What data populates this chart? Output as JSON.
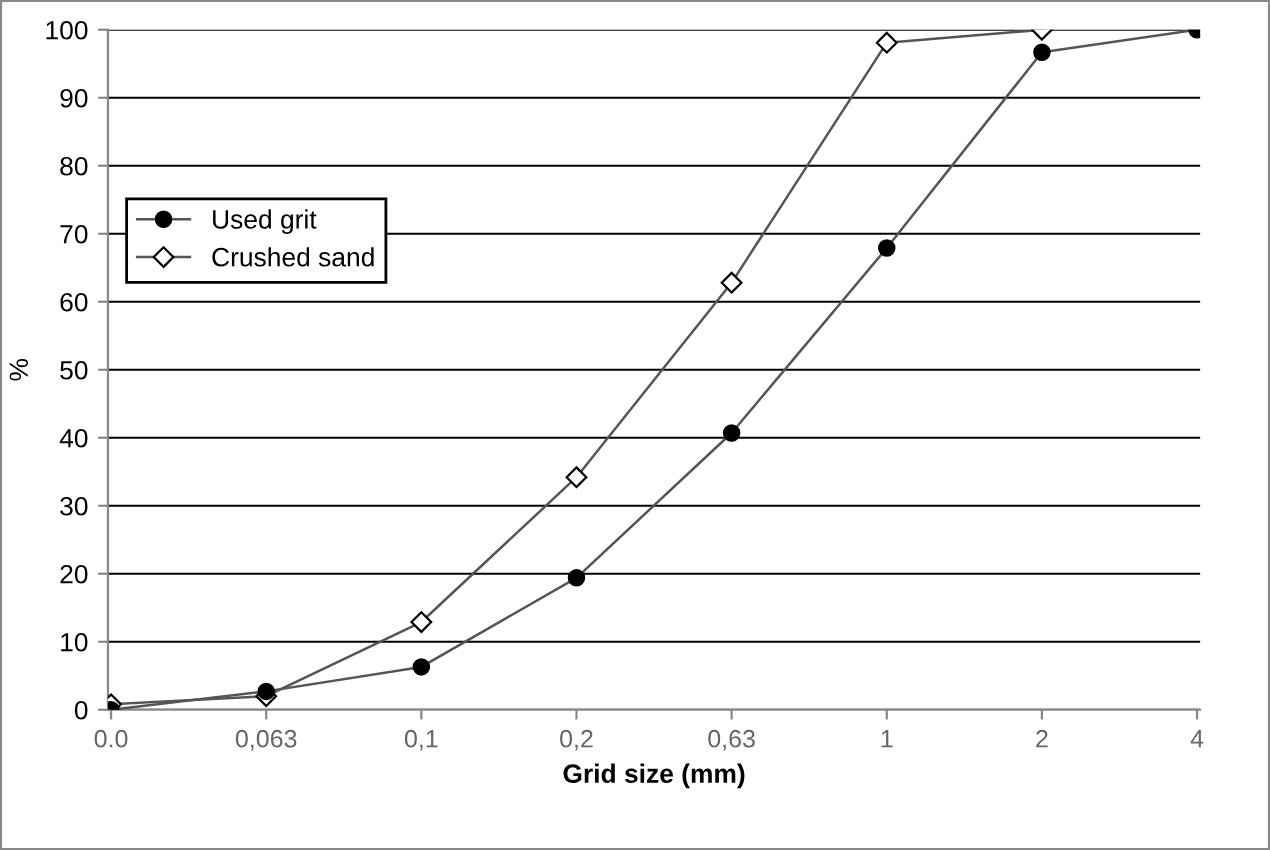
{
  "chart_data": {
    "type": "line",
    "xlabel": "Grid size (mm)",
    "ylabel": "%",
    "categories": [
      "0.0",
      "0,063",
      "0,1",
      "0,2",
      "0,63",
      "1",
      "2",
      "4"
    ],
    "series": [
      {
        "name": "Used grit",
        "color": "#000000",
        "marker": "circle",
        "values": [
          0,
          2.7,
          6.3,
          19.4,
          40.7,
          67.9,
          96.7,
          100
        ]
      },
      {
        "name": "Crushed sand",
        "color": "#ffffff",
        "marker": "diamond",
        "values": [
          0.8,
          2,
          12.9,
          34.2,
          62.8,
          98.1,
          100,
          null
        ]
      }
    ],
    "ylim": [
      0,
      100
    ],
    "yticks": [
      0,
      10,
      20,
      30,
      40,
      50,
      60,
      70,
      80,
      90,
      100
    ],
    "grid": "y",
    "legend": "left",
    "line_style": "solid"
  }
}
